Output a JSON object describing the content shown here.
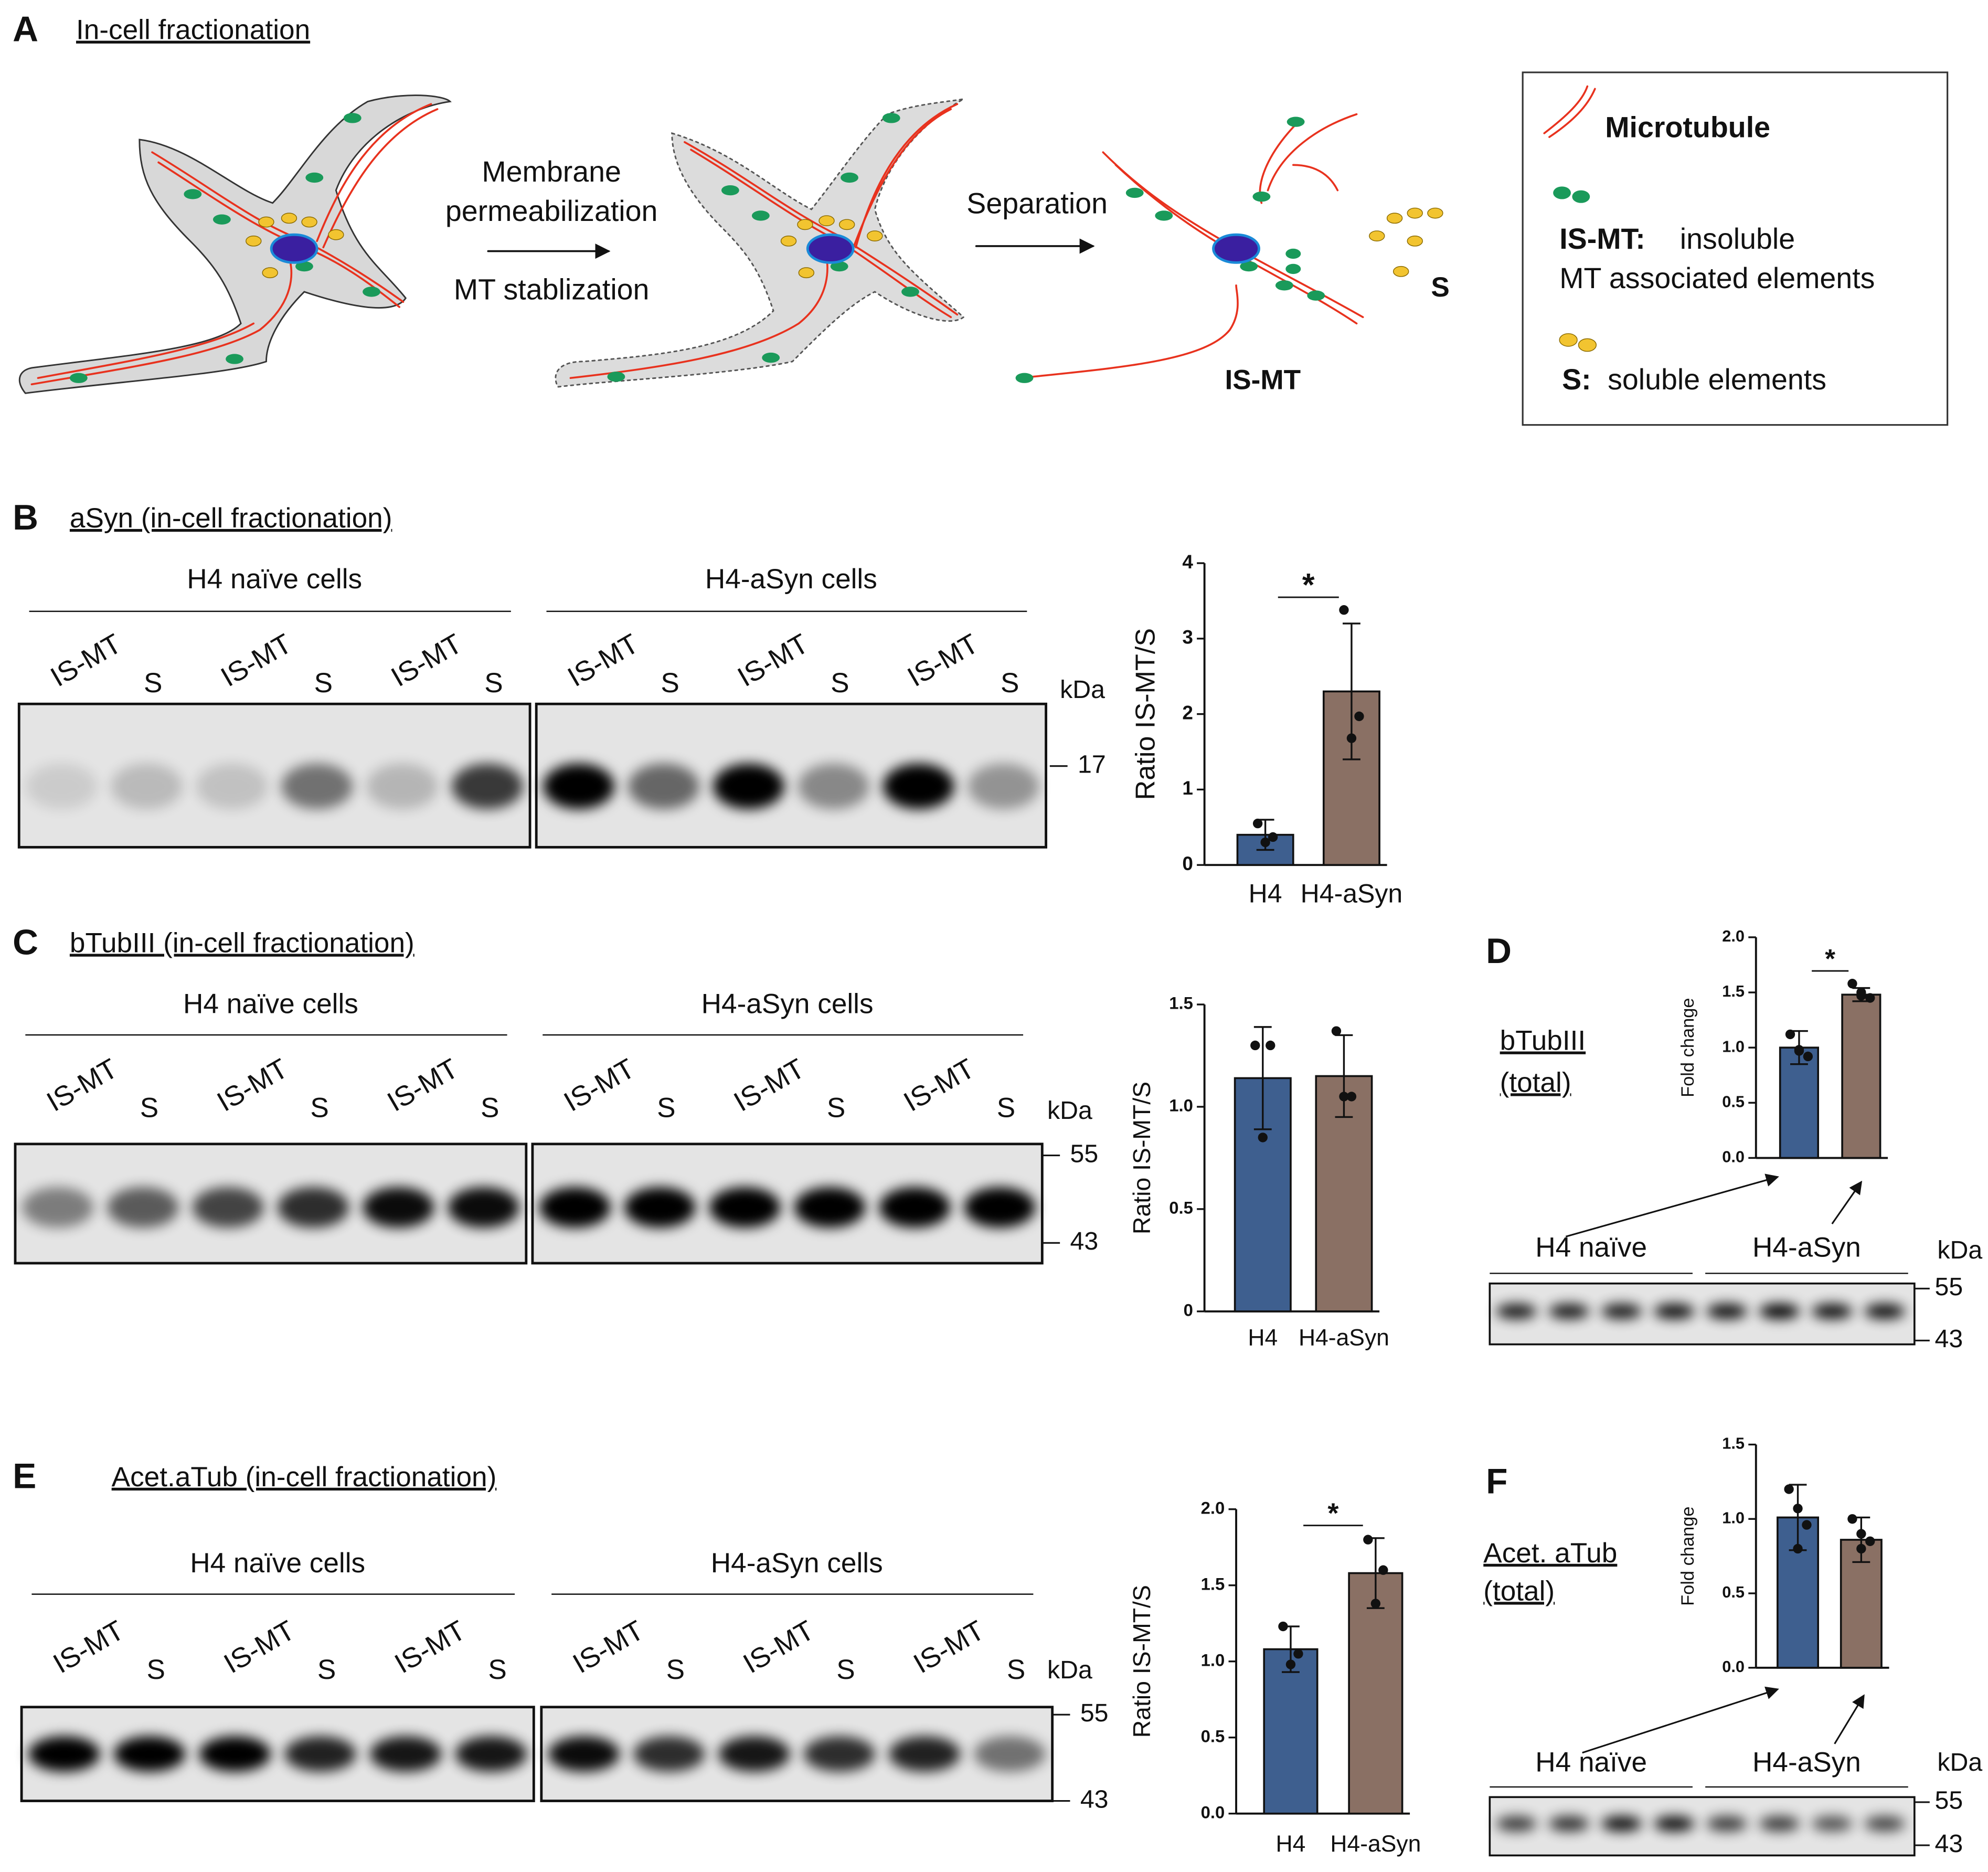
{
  "panels": {
    "A": {
      "letter": "A",
      "title": "In-cell fractionation",
      "step1": [
        "Membrane",
        "permeabilization"
      ],
      "step1b": "MT stablization",
      "step2": "Separation",
      "label_ismt": "IS-MT",
      "label_s": "S",
      "legend": {
        "mt": "Microtubule",
        "ismt_key": "IS-MT:",
        "ismt_text": [
          "insoluble",
          "MT associated elements"
        ],
        "s_key": "S:",
        "s_text": "soluble elements"
      }
    },
    "B": {
      "letter": "B",
      "title": "aSyn (in-cell fractionation)",
      "groups": [
        "H4 naïve cells",
        "H4-aSyn cells"
      ],
      "lanes": [
        "IS-MT",
        "S",
        "IS-MT",
        "S",
        "IS-MT",
        "S",
        "IS-MT",
        "S",
        "IS-MT",
        "S",
        "IS-MT",
        "S"
      ],
      "unit": "kDa",
      "markers": [
        17
      ]
    },
    "C": {
      "letter": "C",
      "title": "bTubIII (in-cell fractionation)",
      "groups": [
        "H4 naïve cells",
        "H4-aSyn cells"
      ],
      "lanes": [
        "IS-MT",
        "S",
        "IS-MT",
        "S",
        "IS-MT",
        "S",
        "IS-MT",
        "S",
        "IS-MT",
        "S",
        "IS-MT",
        "S"
      ],
      "unit": "kDa",
      "markers": [
        55,
        43
      ]
    },
    "D": {
      "letter": "D",
      "label": [
        "bTubIII",
        "(total)"
      ],
      "groups": [
        "H4 naïve",
        "H4-aSyn"
      ],
      "unit": "kDa",
      "markers": [
        55,
        43
      ]
    },
    "E": {
      "letter": "E",
      "title": "Acet.aTub (in-cell fractionation)",
      "groups": [
        "H4 naïve cells",
        "H4-aSyn cells"
      ],
      "lanes": [
        "IS-MT",
        "S",
        "IS-MT",
        "S",
        "IS-MT",
        "S",
        "IS-MT",
        "S",
        "IS-MT",
        "S",
        "IS-MT",
        "S"
      ],
      "unit": "kDa",
      "markers": [
        55,
        43
      ]
    },
    "F": {
      "letter": "F",
      "label": [
        "Acet. aTub",
        "(total)"
      ],
      "groups": [
        "H4 naïve",
        "H4-aSyn"
      ],
      "unit": "kDa",
      "markers": [
        55,
        43
      ]
    }
  },
  "chart_data": [
    {
      "type": "bar",
      "ylabel": "Ratio IS-MT/S",
      "categories": [
        "H4",
        "H4-aSyn"
      ],
      "values": [
        0.4,
        2.3
      ],
      "errors": [
        0.2,
        0.9
      ],
      "points": [
        [
          0.55,
          0.37,
          0.3
        ],
        [
          3.38,
          1.97,
          1.68
        ]
      ],
      "colors": [
        "#3e5f8f",
        "#8a7064"
      ],
      "ylim": [
        0,
        4
      ],
      "yticks": [
        0,
        1,
        2,
        3,
        4
      ],
      "annotation": "*"
    },
    {
      "type": "bar",
      "ylabel": "Ratio IS-MT/S",
      "categories": [
        "H4",
        "H4-aSyn"
      ],
      "values": [
        1.14,
        1.15
      ],
      "errors": [
        0.25,
        0.2
      ],
      "points": [
        [
          1.3,
          1.3,
          0.85
        ],
        [
          1.37,
          1.05,
          1.05
        ]
      ],
      "colors": [
        "#3e5f8f",
        "#8a7064"
      ],
      "ylim": [
        0,
        1.5
      ],
      "yticks": [
        0,
        0.5,
        {
          "value": 1,
          "label": "1.0"
        },
        1.5
      ]
    },
    {
      "type": "bar",
      "ylabel": "Fold change",
      "values": [
        1.0,
        1.48
      ],
      "errors": [
        0.15,
        0.06
      ],
      "points": [
        [
          1.12,
          0.98,
          0.92,
          0.97
        ],
        [
          1.58,
          1.5,
          1.45,
          1.47
        ]
      ],
      "colors": [
        "#3e5f8f",
        "#8a7064"
      ],
      "ylim": [
        0,
        2
      ],
      "yticks": [
        {
          "value": 0,
          "label": "0.0"
        },
        0.5,
        {
          "value": 1,
          "label": "1.0"
        },
        1.5,
        {
          "value": 2,
          "label": "2.0"
        }
      ],
      "annotation": "*"
    },
    {
      "type": "bar",
      "ylabel": "Ratio IS-MT/S",
      "categories": [
        "H4",
        "H4-aSyn"
      ],
      "values": [
        1.08,
        1.58
      ],
      "errors": [
        0.15,
        0.23
      ],
      "points": [
        [
          1.23,
          1.05,
          0.98
        ],
        [
          1.8,
          1.6,
          1.38
        ]
      ],
      "colors": [
        "#3e5f8f",
        "#8a7064"
      ],
      "ylim": [
        0,
        2
      ],
      "yticks": [
        {
          "value": 0,
          "label": "0.0"
        },
        0.5,
        {
          "value": 1,
          "label": "1.0"
        },
        1.5,
        {
          "value": 2,
          "label": "2.0"
        }
      ],
      "annotation": "*"
    },
    {
      "type": "bar",
      "ylabel": "Fold change",
      "values": [
        1.01,
        0.86
      ],
      "errors": [
        0.22,
        0.15
      ],
      "points": [
        [
          1.2,
          1.07,
          0.96,
          0.8
        ],
        [
          1.0,
          0.9,
          0.85,
          0.8
        ]
      ],
      "colors": [
        "#3e5f8f",
        "#8a7064"
      ],
      "ylim": [
        0,
        1.5
      ],
      "yticks": [
        {
          "value": 0,
          "label": "0.0"
        },
        0.5,
        {
          "value": 1,
          "label": "1.0"
        },
        1.5
      ]
    }
  ]
}
